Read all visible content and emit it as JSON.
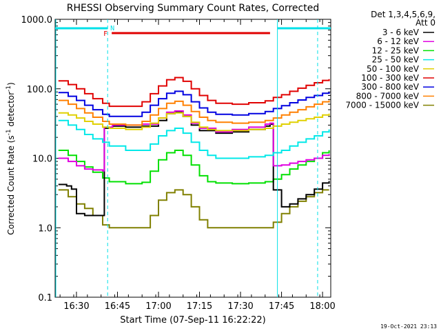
{
  "chart_data": {
    "type": "line",
    "title": "RHESSI Observing Summary Count Rates, Corrected",
    "xlabel": "Start Time (07-Sep-11 16:22:22)",
    "ylabel": "Corrected Count Rate (s⁻¹ detector⁻¹)",
    "ylabel_main": "Corrected Count Rate (s",
    "ylabel_sup1": "-1",
    "ylabel_mid": " detector",
    "ylabel_sup2": "-1",
    "ylabel_end": ")",
    "yscale": "log",
    "ylim": [
      0.1,
      1000
    ],
    "xlim_minutes": [
      16.37,
      18.05
    ],
    "y_ticks": [
      {
        "value": 0.1,
        "label": "0.1"
      },
      {
        "value": 1,
        "label": "1.0"
      },
      {
        "value": 10,
        "label": "10.0"
      },
      {
        "value": 100,
        "label": "100.0"
      },
      {
        "value": 1000,
        "label": "1000.0"
      }
    ],
    "x_ticks": [
      {
        "value": 16.5,
        "label": "16:30"
      },
      {
        "value": 16.75,
        "label": "16:45"
      },
      {
        "value": 17.0,
        "label": "17:00"
      },
      {
        "value": 17.25,
        "label": "17:15"
      },
      {
        "value": 17.5,
        "label": "17:30"
      },
      {
        "value": 17.75,
        "label": "17:45"
      },
      {
        "value": 18.0,
        "label": "18:00"
      }
    ],
    "legend_header": [
      "Det 1,3,4,5,6,9,",
      "Att 0"
    ],
    "legend_position": "right",
    "series": [
      {
        "name": "3 - 6 keV",
        "color": "#000000",
        "x": [
          16.39,
          16.44,
          16.47,
          16.5,
          16.55,
          16.6,
          16.66,
          16.67,
          16.72,
          16.8,
          16.9,
          17.0,
          17.05,
          17.1,
          17.15,
          17.2,
          17.25,
          17.35,
          17.45,
          17.55,
          17.65,
          17.68,
          17.7,
          17.75,
          17.8,
          17.85,
          17.9,
          17.95,
          18.0,
          18.04
        ],
        "y": [
          4.2,
          4.0,
          3.6,
          1.6,
          1.5,
          1.5,
          1.5,
          27,
          29,
          28,
          29,
          35,
          44,
          47,
          40,
          30,
          25,
          23,
          24,
          26,
          29,
          31,
          3.5,
          2.0,
          2.2,
          2.6,
          3.0,
          3.6,
          4.4,
          4.7
        ]
      },
      {
        "name": "6 - 12 keV",
        "color": "#e000e0",
        "x": [
          16.39,
          16.45,
          16.5,
          16.55,
          16.6,
          16.66,
          16.67,
          16.72,
          16.8,
          16.9,
          17.0,
          17.05,
          17.1,
          17.15,
          17.2,
          17.25,
          17.35,
          17.45,
          17.55,
          17.65,
          17.68,
          17.7,
          17.75,
          17.8,
          17.85,
          17.9,
          17.95,
          18.0,
          18.04
        ],
        "y": [
          10,
          9.0,
          7.8,
          7.0,
          6.8,
          6.6,
          28,
          30,
          30,
          31,
          38,
          46,
          48,
          42,
          32,
          27,
          24,
          26,
          28,
          31,
          32,
          7.8,
          8.0,
          8.5,
          9.0,
          9.5,
          10,
          11,
          11.5
        ]
      },
      {
        "name": "12 - 25 keV",
        "color": "#00e000",
        "x": [
          16.39,
          16.45,
          16.5,
          16.55,
          16.6,
          16.66,
          16.7,
          16.8,
          16.9,
          16.95,
          17.0,
          17.05,
          17.1,
          17.15,
          17.2,
          17.25,
          17.3,
          17.35,
          17.45,
          17.55,
          17.65,
          17.7,
          17.75,
          17.8,
          17.85,
          17.9,
          17.95,
          18.0,
          18.04
        ],
        "y": [
          13,
          11,
          9.0,
          7.5,
          6.3,
          5.2,
          4.6,
          4.3,
          4.5,
          6.5,
          9.5,
          12,
          13,
          11,
          8.0,
          5.6,
          4.6,
          4.4,
          4.3,
          4.4,
          4.6,
          5.0,
          5.8,
          7.0,
          8.0,
          9.0,
          10,
          12,
          13
        ]
      },
      {
        "name": "25 - 50 keV",
        "color": "#00e8e8",
        "x": [
          16.39,
          16.45,
          16.5,
          16.55,
          16.6,
          16.66,
          16.7,
          16.8,
          16.9,
          16.95,
          17.0,
          17.05,
          17.1,
          17.15,
          17.2,
          17.25,
          17.3,
          17.35,
          17.45,
          17.55,
          17.65,
          17.7,
          17.75,
          17.8,
          17.85,
          17.9,
          17.95,
          18.0,
          18.04
        ],
        "y": [
          35,
          30,
          26,
          22,
          19,
          17,
          15,
          13,
          13,
          16,
          21,
          25,
          27,
          23,
          17,
          13,
          11,
          10,
          10,
          10.5,
          11,
          12,
          13,
          15,
          17,
          19,
          21,
          24,
          26
        ]
      },
      {
        "name": "50 - 100 keV",
        "color": "#e0d000",
        "x": [
          16.39,
          16.45,
          16.5,
          16.55,
          16.6,
          16.66,
          16.7,
          16.8,
          16.9,
          16.95,
          17.0,
          17.05,
          17.1,
          17.15,
          17.2,
          17.25,
          17.3,
          17.35,
          17.45,
          17.55,
          17.65,
          17.7,
          17.75,
          17.8,
          17.85,
          17.9,
          17.95,
          18.0,
          18.04
        ],
        "y": [
          45,
          42,
          38,
          34,
          31,
          28,
          27,
          26,
          28,
          32,
          38,
          44,
          45,
          40,
          33,
          28,
          26,
          25,
          25,
          26,
          27,
          29,
          31,
          33,
          35,
          37,
          39,
          42,
          44
        ]
      },
      {
        "name": "100 - 300 keV",
        "color": "#e00000",
        "x": [
          16.39,
          16.45,
          16.5,
          16.55,
          16.6,
          16.66,
          16.7,
          16.8,
          16.9,
          16.95,
          17.0,
          17.05,
          17.1,
          17.15,
          17.2,
          17.25,
          17.3,
          17.35,
          17.45,
          17.55,
          17.65,
          17.7,
          17.75,
          17.8,
          17.85,
          17.9,
          17.95,
          18.0,
          18.04
        ],
        "y": [
          130,
          115,
          100,
          85,
          72,
          62,
          56,
          56,
          65,
          85,
          110,
          135,
          145,
          128,
          100,
          80,
          68,
          62,
          60,
          63,
          67,
          75,
          82,
          92,
          102,
          112,
          122,
          132,
          138
        ]
      },
      {
        "name": "300 - 800 keV",
        "color": "#0000e0",
        "x": [
          16.39,
          16.45,
          16.5,
          16.55,
          16.6,
          16.66,
          16.7,
          16.8,
          16.9,
          16.95,
          17.0,
          17.05,
          17.1,
          17.15,
          17.2,
          17.25,
          17.3,
          17.35,
          17.45,
          17.55,
          17.65,
          17.7,
          17.75,
          17.8,
          17.85,
          17.9,
          17.95,
          18.0,
          18.04
        ],
        "y": [
          88,
          78,
          68,
          58,
          50,
          43,
          40,
          40,
          46,
          58,
          72,
          86,
          92,
          82,
          65,
          53,
          46,
          43,
          42,
          44,
          47,
          52,
          57,
          63,
          69,
          75,
          80,
          86,
          90
        ]
      },
      {
        "name": "800 - 7000 keV",
        "color": "#ff8000",
        "x": [
          16.39,
          16.45,
          16.5,
          16.55,
          16.6,
          16.66,
          16.7,
          16.8,
          16.9,
          16.95,
          17.0,
          17.05,
          17.1,
          17.15,
          17.2,
          17.25,
          17.3,
          17.35,
          17.45,
          17.55,
          17.65,
          17.7,
          17.75,
          17.8,
          17.85,
          17.9,
          17.95,
          18.0,
          18.04
        ],
        "y": [
          68,
          60,
          52,
          45,
          39,
          34,
          31,
          30,
          34,
          42,
          52,
          62,
          66,
          58,
          47,
          39,
          35,
          33,
          32,
          33,
          35,
          38,
          42,
          46,
          50,
          55,
          60,
          65,
          68
        ]
      },
      {
        "name": "7000 - 15000 keV",
        "color": "#808000",
        "x": [
          16.39,
          16.45,
          16.5,
          16.55,
          16.6,
          16.66,
          16.7,
          16.8,
          16.9,
          16.95,
          17.0,
          17.05,
          17.1,
          17.15,
          17.2,
          17.25,
          17.3,
          17.35,
          17.45,
          17.55,
          17.65,
          17.7,
          17.75,
          17.8,
          17.85,
          17.9,
          17.95,
          18.0,
          18.04
        ],
        "y": [
          3.5,
          2.8,
          2.2,
          1.9,
          1.5,
          1.1,
          1.0,
          1.0,
          1.0,
          1.5,
          2.5,
          3.2,
          3.5,
          3.0,
          2.0,
          1.3,
          1.0,
          1.0,
          1.0,
          1.0,
          1.0,
          1.2,
          1.6,
          2.0,
          2.4,
          2.8,
          3.2,
          3.5,
          3.5
        ]
      }
    ],
    "flags": {
      "night_label": "N",
      "flare_label": "F",
      "night_color": "#00e0e8",
      "flare_color": "#e00000",
      "night_bar_intervals": [
        [
          16.37,
          16.69
        ],
        [
          17.725,
          18.05
        ]
      ],
      "flare_bar_intervals": [
        [
          16.715,
          17.68
        ]
      ],
      "night_dashed_lines": [
        16.69,
        17.97
      ],
      "night_solid_lines": [
        17.725
      ]
    }
  },
  "footer_timestamp": "19-Oct-2021 23:13"
}
